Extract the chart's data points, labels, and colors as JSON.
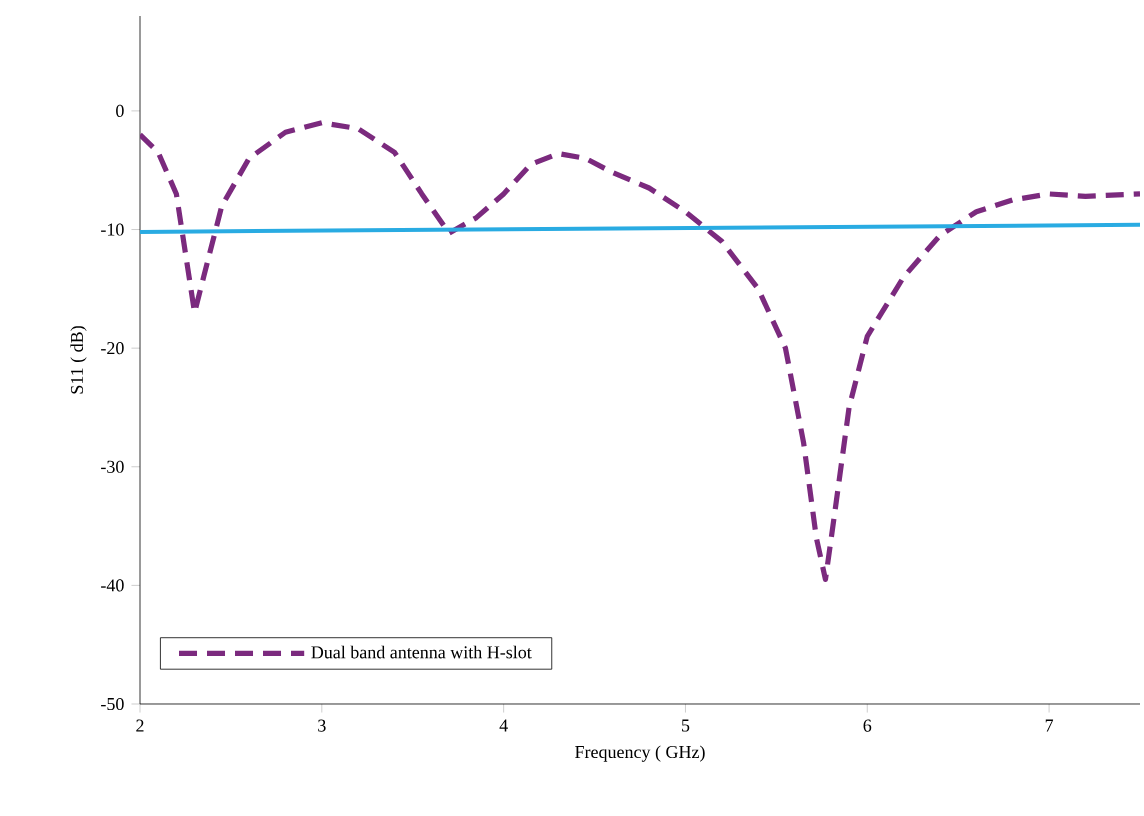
{
  "chart_data": {
    "type": "line",
    "xlabel": "Frequency ( GHz)",
    "ylabel": "S11 ( dB)",
    "xlim": [
      2,
      7.5
    ],
    "ylim": [
      -50,
      8
    ],
    "xticks": [
      2,
      3,
      4,
      5,
      6,
      7
    ],
    "yticks": [
      -50,
      -40,
      -30,
      -20,
      -10,
      0
    ],
    "grid": false,
    "legend": "bottom",
    "marker": "none",
    "series": [
      {
        "name": "Dual band antenna with H-slot",
        "color": "#7b2a7e",
        "line_style": "dashed",
        "x": [
          2,
          2.1,
          2.2,
          2.25,
          2.3,
          2.35,
          2.45,
          2.6,
          2.8,
          3.0,
          3.2,
          3.4,
          3.55,
          3.7,
          3.85,
          4.0,
          4.15,
          4.3,
          4.45,
          4.6,
          4.8,
          5.0,
          5.2,
          5.4,
          5.55,
          5.65,
          5.72,
          5.77,
          5.82,
          5.9,
          6.0,
          6.2,
          6.4,
          6.6,
          6.8,
          7.0,
          7.2,
          7.5
        ],
        "values": [
          -2,
          -3.5,
          -7,
          -12,
          -17,
          -14,
          -8,
          -4,
          -1.8,
          -1,
          -1.5,
          -3.5,
          -7,
          -10.3,
          -9,
          -7,
          -4.5,
          -3.6,
          -4,
          -5.2,
          -6.5,
          -8.5,
          -11,
          -15,
          -20,
          -28,
          -36,
          -39.5,
          -34,
          -25,
          -19,
          -14,
          -10.5,
          -8.5,
          -7.5,
          -7,
          -7.2,
          -7
        ]
      },
      {
        "color": "#29abe2",
        "line_style": "solid",
        "x": [
          2,
          7.5
        ],
        "values": [
          -10.2,
          -9.6
        ]
      }
    ]
  }
}
